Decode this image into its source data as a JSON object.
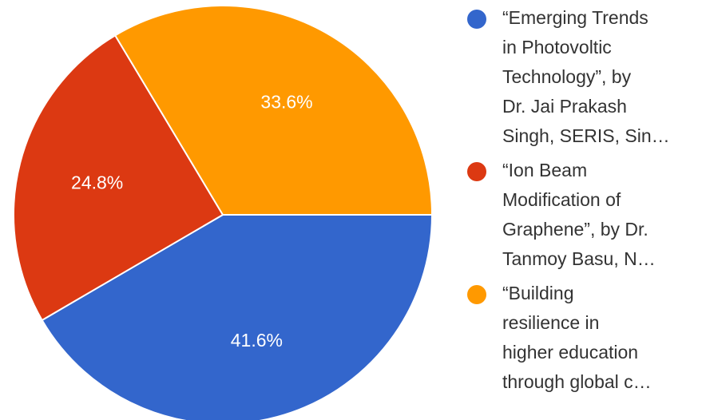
{
  "chart_data": {
    "type": "pie",
    "slices": [
      {
        "label": "“Emerging Trends in Photovoltic Technology”, by Dr. Jai Prakash Singh, SERIS, Sin…",
        "legend_lines": "“Emerging Trends\nin Photovoltic\nTechnology”, by\nDr. Jai Prakash\nSingh, SERIS, Sin…",
        "value": 41.6,
        "value_label": "41.6%",
        "color": "#3366cc"
      },
      {
        "label": "“Ion Beam Modification of Graphene”, by Dr. Tanmoy Basu, N…",
        "legend_lines": "“Ion Beam\nModification of\nGraphene”, by Dr.\nTanmoy Basu, N…",
        "value": 24.8,
        "value_label": "24.8%",
        "color": "#dc3912"
      },
      {
        "label": "“Building resilience in higher education through global c…",
        "legend_lines": "“Building\nresilience in\nhigher education\nthrough global c…",
        "value": 33.6,
        "value_label": "33.6%",
        "color": "#ff9900"
      }
    ],
    "legend_position": "right"
  }
}
